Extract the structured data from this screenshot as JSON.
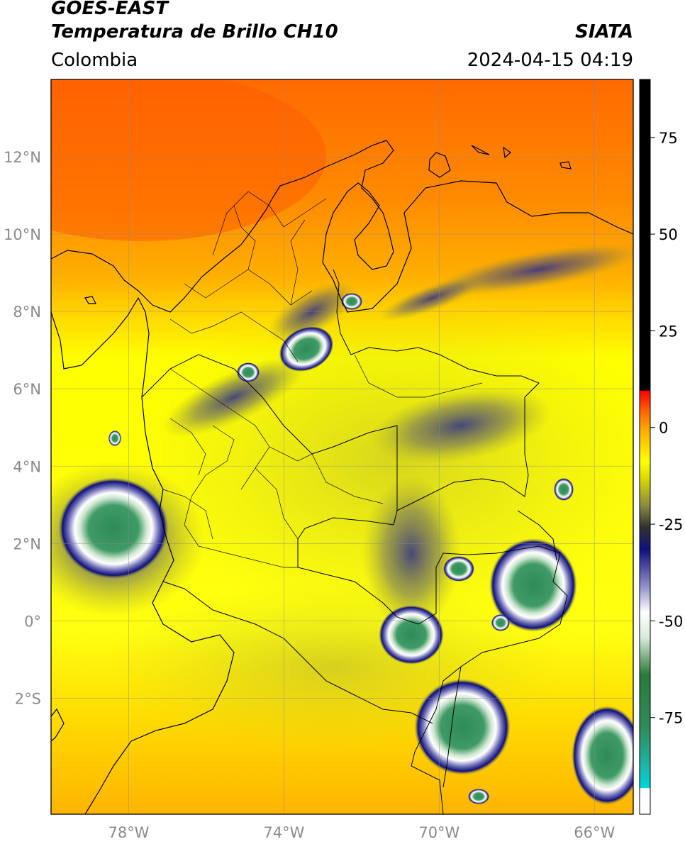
{
  "header": {
    "title_line1": "GOES-EAST",
    "title_line2": "Temperatura de Brillo CH10",
    "brand": "SIATA",
    "region": "Colombia",
    "timestamp": "2024-04-15 04:19"
  },
  "map": {
    "lon_range": [
      -80,
      -65
    ],
    "lat_range": [
      -5,
      14
    ],
    "lat_labels": [
      {
        "v": 12,
        "t": "12°N"
      },
      {
        "v": 10,
        "t": "10°N"
      },
      {
        "v": 8,
        "t": "8°N"
      },
      {
        "v": 6,
        "t": "6°N"
      },
      {
        "v": 4,
        "t": "4°N"
      },
      {
        "v": 2,
        "t": "2°N"
      },
      {
        "v": 0,
        "t": "0°"
      },
      {
        "v": -2,
        "t": "2°S"
      }
    ],
    "lon_labels": [
      {
        "v": -78,
        "t": "78°W"
      },
      {
        "v": -74,
        "t": "74°W"
      },
      {
        "v": -70,
        "t": "70°W"
      },
      {
        "v": -66,
        "t": "66°W"
      }
    ],
    "colors": {
      "warm_orange": "#ff6a00",
      "orange": "#ff9a00",
      "yellow": "#ffff00",
      "olive": "#9a9a35",
      "navy": "#101080",
      "white": "#ffffff",
      "green": "#2e8b57"
    }
  },
  "colorbar": {
    "range": [
      -100,
      90
    ],
    "ticks": [
      {
        "v": 75,
        "t": "75"
      },
      {
        "v": 50,
        "t": "50"
      },
      {
        "v": 25,
        "t": "25"
      },
      {
        "v": 0,
        "t": "0"
      },
      {
        "v": -25,
        "t": "-25"
      },
      {
        "v": -50,
        "t": "-50"
      },
      {
        "v": -75,
        "t": "-75"
      }
    ]
  }
}
